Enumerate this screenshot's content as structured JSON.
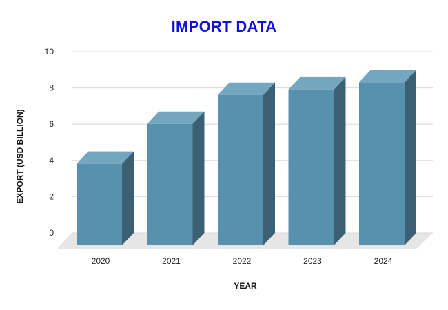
{
  "chart_data": {
    "type": "bar",
    "title": "IMPORT DATA",
    "xlabel": "YEAR",
    "ylabel": "EXPORT (USD BILLION)",
    "categories": [
      "2020",
      "2021",
      "2022",
      "2023",
      "2024"
    ],
    "values": [
      4.5,
      6.7,
      8.3,
      8.6,
      9.0
    ],
    "ylim": [
      0,
      10
    ],
    "yticks": [
      0,
      2,
      4,
      6,
      8,
      10
    ],
    "grid": true,
    "legend": "none",
    "colors": {
      "bar_front": "#5891ae",
      "bar_top": "#75a6c0",
      "bar_side": "#3b5f73",
      "floor": "#e6e6e6",
      "grid": "#d9d9d9",
      "title": "#1010e0"
    }
  }
}
